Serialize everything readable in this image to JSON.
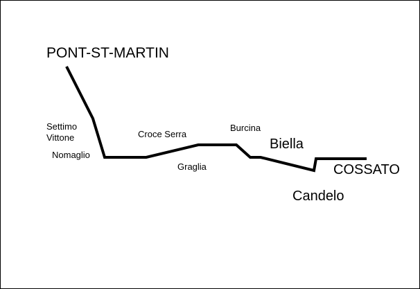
{
  "route": {
    "stroke_color": "#000000"
  },
  "places": {
    "start": "PONT-ST-MARTIN",
    "settimo": "Settimo",
    "vittone": "Vittone",
    "nomaglio": "Nomaglio",
    "croce_serra": "Croce Serra",
    "graglia": "Graglia",
    "burcina": "Burcina",
    "biella": "Biella",
    "candelo": "Candelo",
    "end": "COSSATO"
  }
}
